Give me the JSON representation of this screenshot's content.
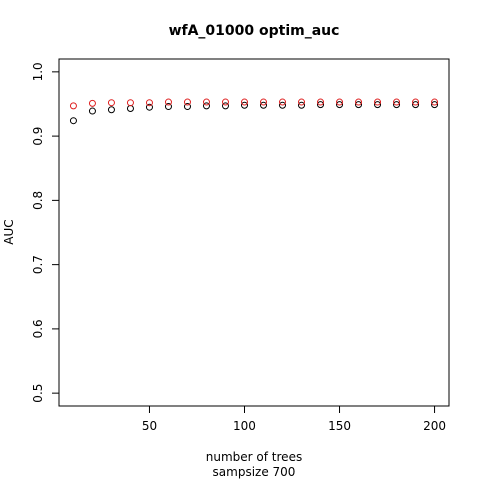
{
  "chart_data": {
    "type": "scatter",
    "title": "wfA_01000 optim_auc",
    "xlabel": "number of trees",
    "xlabel2": "sampsize 700",
    "ylabel": "AUC",
    "xlim": [
      10,
      200
    ],
    "ylim": [
      0.5,
      1.0
    ],
    "xticks": [
      50,
      100,
      150,
      200
    ],
    "yticks": [
      0.5,
      0.6,
      0.7,
      0.8,
      0.9,
      1.0
    ],
    "xtick_labels": [
      "50",
      "100",
      "150",
      "200"
    ],
    "ytick_labels": [
      "0.5",
      "0.6",
      "0.7",
      "0.8",
      "0.9",
      "1.0"
    ],
    "grid": false,
    "x": [
      10,
      20,
      30,
      40,
      50,
      60,
      70,
      80,
      90,
      100,
      110,
      120,
      130,
      140,
      150,
      160,
      170,
      180,
      190,
      200
    ],
    "series": [
      {
        "color": "#000000",
        "values": [
          0.924,
          0.939,
          0.941,
          0.943,
          0.945,
          0.946,
          0.946,
          0.947,
          0.947,
          0.948,
          0.948,
          0.948,
          0.948,
          0.949,
          0.949,
          0.949,
          0.949,
          0.949,
          0.949,
          0.949
        ]
      },
      {
        "color": "#df2020",
        "values": [
          0.947,
          0.951,
          0.952,
          0.952,
          0.952,
          0.953,
          0.953,
          0.953,
          0.953,
          0.953,
          0.953,
          0.953,
          0.953,
          0.953,
          0.953,
          0.953,
          0.953,
          0.953,
          0.953,
          0.953
        ]
      }
    ]
  }
}
